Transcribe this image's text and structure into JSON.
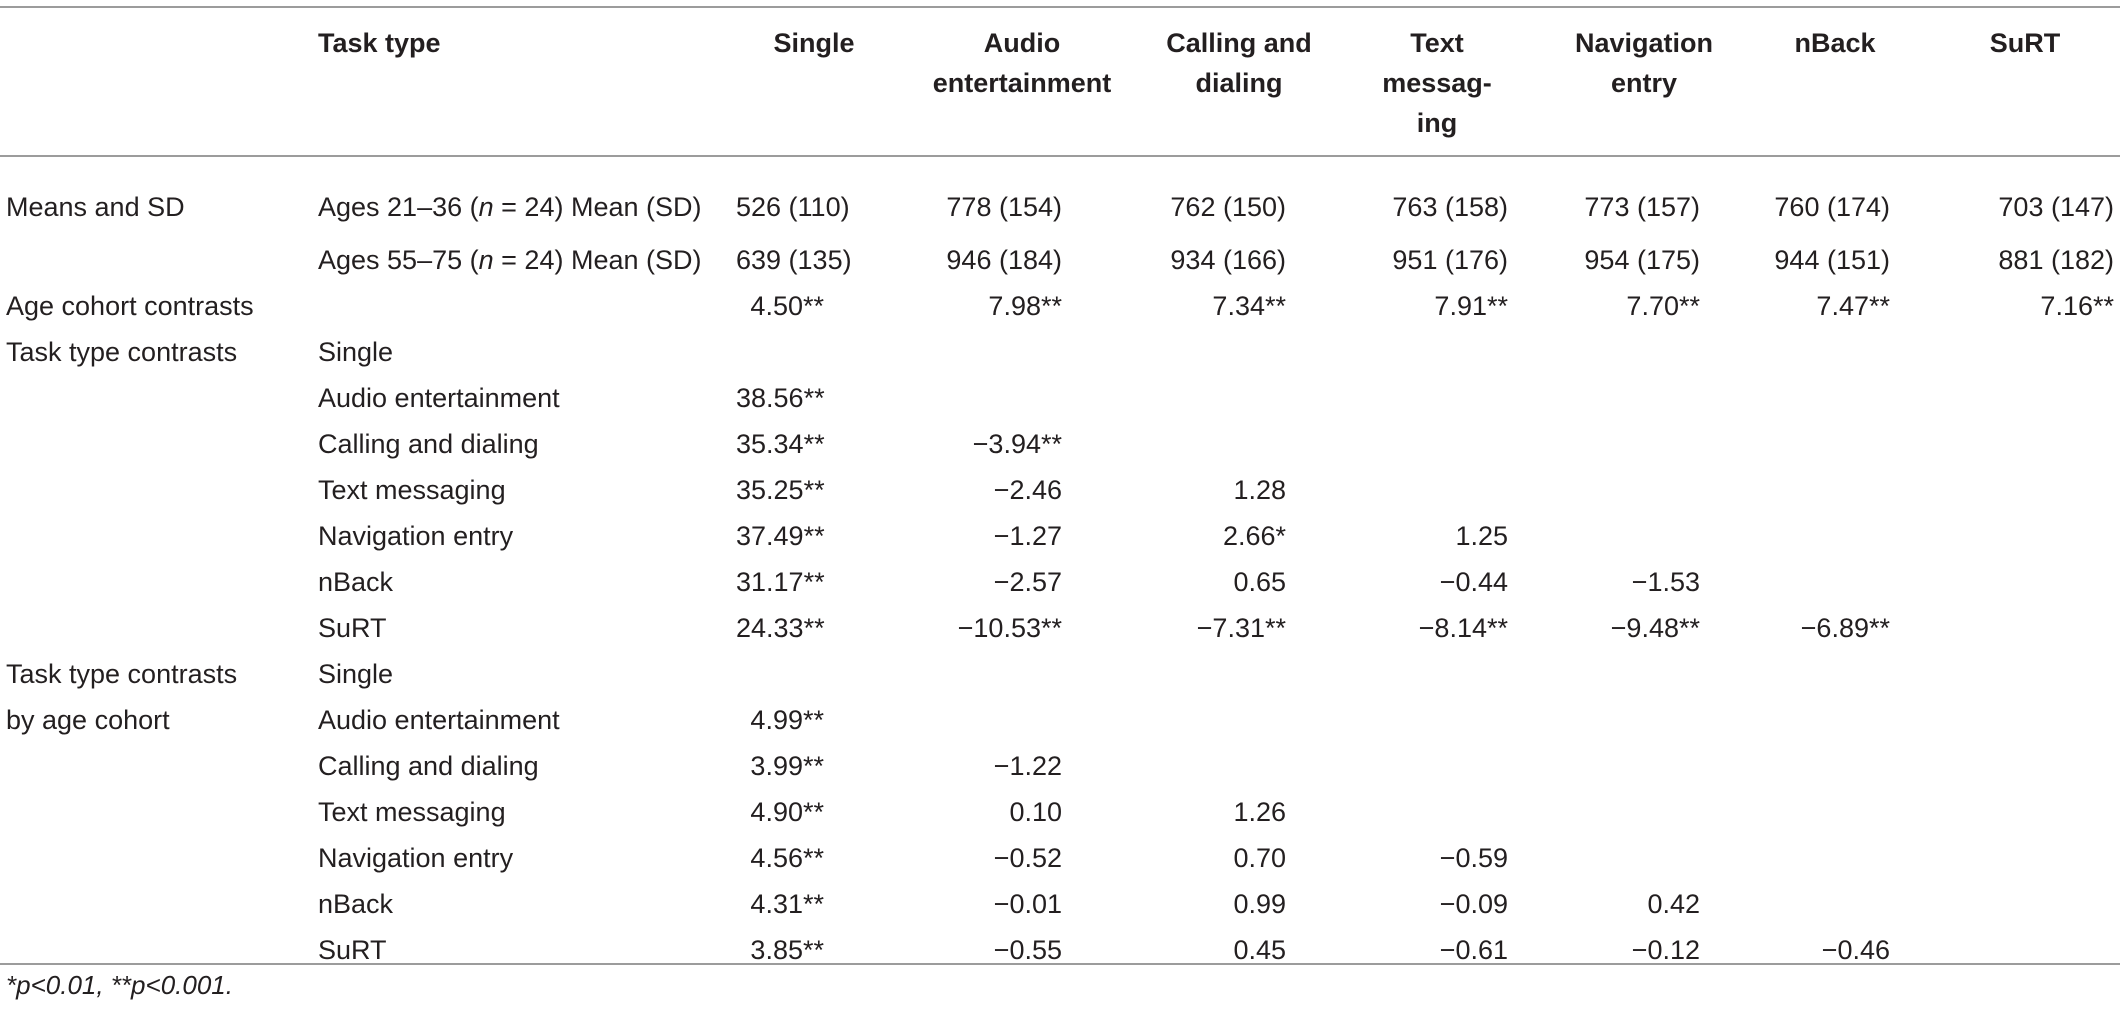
{
  "header": {
    "row_label": "",
    "task_type": "Task type",
    "columns": [
      "Single",
      "Audio entertainment",
      "Calling and dialing",
      "Text messag-ing",
      "Navigation entry",
      "nBack",
      "SuRT"
    ]
  },
  "header_lines": [
    [
      "Single"
    ],
    [
      "Audio",
      "entertainment"
    ],
    [
      "Calling and",
      "dialing"
    ],
    [
      "Text",
      "messag-",
      "ing"
    ],
    [
      "Navigation",
      "entry"
    ],
    [
      "nBack"
    ],
    [
      "SuRT"
    ]
  ],
  "rows": [
    {
      "category": "Means and SD",
      "sub_pre": "Ages 21–36 (",
      "sub_n": "n",
      "sub_post": " = 24) Mean (SD)",
      "values": [
        "526 (110)",
        "778 (154)",
        "762 (150)",
        "763 (158)",
        "773 (157)",
        "760 (174)",
        "703 (147)"
      ]
    },
    {
      "category": "",
      "sub_pre": "Ages 55–75 (",
      "sub_n": "n",
      "sub_post": " = 24) Mean (SD)",
      "values": [
        "639 (135)",
        "946 (184)",
        "934 (166)",
        "951 (176)",
        "954 (175)",
        "944 (151)",
        "881 (182)"
      ]
    },
    {
      "category": "Age cohort contrasts",
      "sub": "",
      "values": [
        "4.50**",
        "7.98**",
        "7.34**",
        "7.91**",
        "7.70**",
        "7.47**",
        "7.16**"
      ]
    },
    {
      "category": "Task type contrasts",
      "sub": "Single",
      "values": [
        "",
        "",
        "",
        "",
        "",
        "",
        ""
      ]
    },
    {
      "category": "",
      "sub": "Audio entertainment",
      "values": [
        "38.56**",
        "",
        "",
        "",
        "",
        "",
        ""
      ]
    },
    {
      "category": "",
      "sub": "Calling and dialing",
      "values": [
        "35.34**",
        "−3.94**",
        "",
        "",
        "",
        "",
        ""
      ]
    },
    {
      "category": "",
      "sub": "Text messaging",
      "values": [
        "35.25**",
        "−2.46",
        "1.28",
        "",
        "",
        "",
        ""
      ]
    },
    {
      "category": "",
      "sub": "Navigation entry",
      "values": [
        "37.49**",
        "−1.27",
        "2.66*",
        "1.25",
        "",
        "",
        ""
      ]
    },
    {
      "category": "",
      "sub": "nBack",
      "values": [
        "31.17**",
        "−2.57",
        "0.65",
        "−0.44",
        "−1.53",
        "",
        ""
      ]
    },
    {
      "category": "",
      "sub": "SuRT",
      "values": [
        "24.33**",
        "−10.53**",
        "−7.31**",
        "−8.14**",
        "−9.48**",
        "−6.89**",
        ""
      ]
    },
    {
      "category": "Task type contrasts",
      "sub": "Single",
      "values": [
        "",
        "",
        "",
        "",
        "",
        "",
        ""
      ]
    },
    {
      "category": "by age cohort",
      "sub": "Audio entertainment",
      "values": [
        "4.99**",
        "",
        "",
        "",
        "",
        "",
        ""
      ]
    },
    {
      "category": "",
      "sub": "Calling and dialing",
      "values": [
        "3.99**",
        "−1.22",
        "",
        "",
        "",
        "",
        ""
      ]
    },
    {
      "category": "",
      "sub": "Text messaging",
      "values": [
        "4.90**",
        "0.10",
        "1.26",
        "",
        "",
        "",
        ""
      ]
    },
    {
      "category": "",
      "sub": "Navigation entry",
      "values": [
        "4.56**",
        "−0.52",
        "0.70",
        "−0.59",
        "",
        "",
        ""
      ]
    },
    {
      "category": "",
      "sub": "nBack",
      "values": [
        "4.31**",
        "−0.01",
        "0.99",
        "−0.09",
        "0.42",
        "",
        ""
      ]
    },
    {
      "category": "",
      "sub": "SuRT",
      "values": [
        "3.85**",
        "−0.55",
        "0.45",
        "−0.61",
        "−0.12",
        "−0.46",
        ""
      ]
    }
  ],
  "footnote": "*p<0.01, **p<0.001.",
  "colors": {
    "rule": "#9c9c9c",
    "text": "#231f20"
  }
}
